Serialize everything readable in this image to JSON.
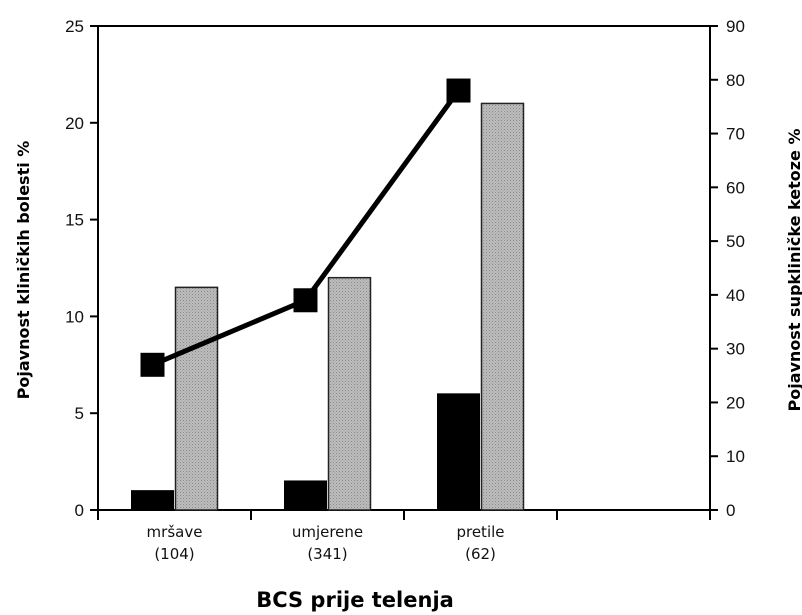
{
  "chart_data": {
    "type": "bar",
    "xlabel": "BCS prije telenja",
    "ylabel": "Pojavnost kliničkih bolesti %",
    "y2label": "Pojavnost supkliničke ketoze %",
    "categories": [
      "mršave",
      "umjerene",
      "pretile"
    ],
    "category_counts": [
      "(104)",
      "(341)",
      "(62)"
    ],
    "ylim": [
      0,
      25
    ],
    "y2lim": [
      0,
      90
    ],
    "yticks": [
      "0",
      "5",
      "10",
      "15",
      "20",
      "25"
    ],
    "y2ticks": [
      "0",
      "10",
      "20",
      "30",
      "40",
      "50",
      "60",
      "70",
      "80",
      "90"
    ],
    "series": [
      {
        "axis": "left",
        "kind": "bar",
        "color": "#000000",
        "values": [
          1.0,
          1.5,
          6.0
        ]
      },
      {
        "axis": "left",
        "kind": "bar",
        "color": "#b3b3b3",
        "values": [
          11.5,
          12.0,
          21.0
        ]
      },
      {
        "axis": "right",
        "kind": "line",
        "color": "#000000",
        "marker": "square",
        "values": [
          27,
          39,
          78
        ]
      }
    ],
    "grid": false,
    "legend": "none"
  }
}
